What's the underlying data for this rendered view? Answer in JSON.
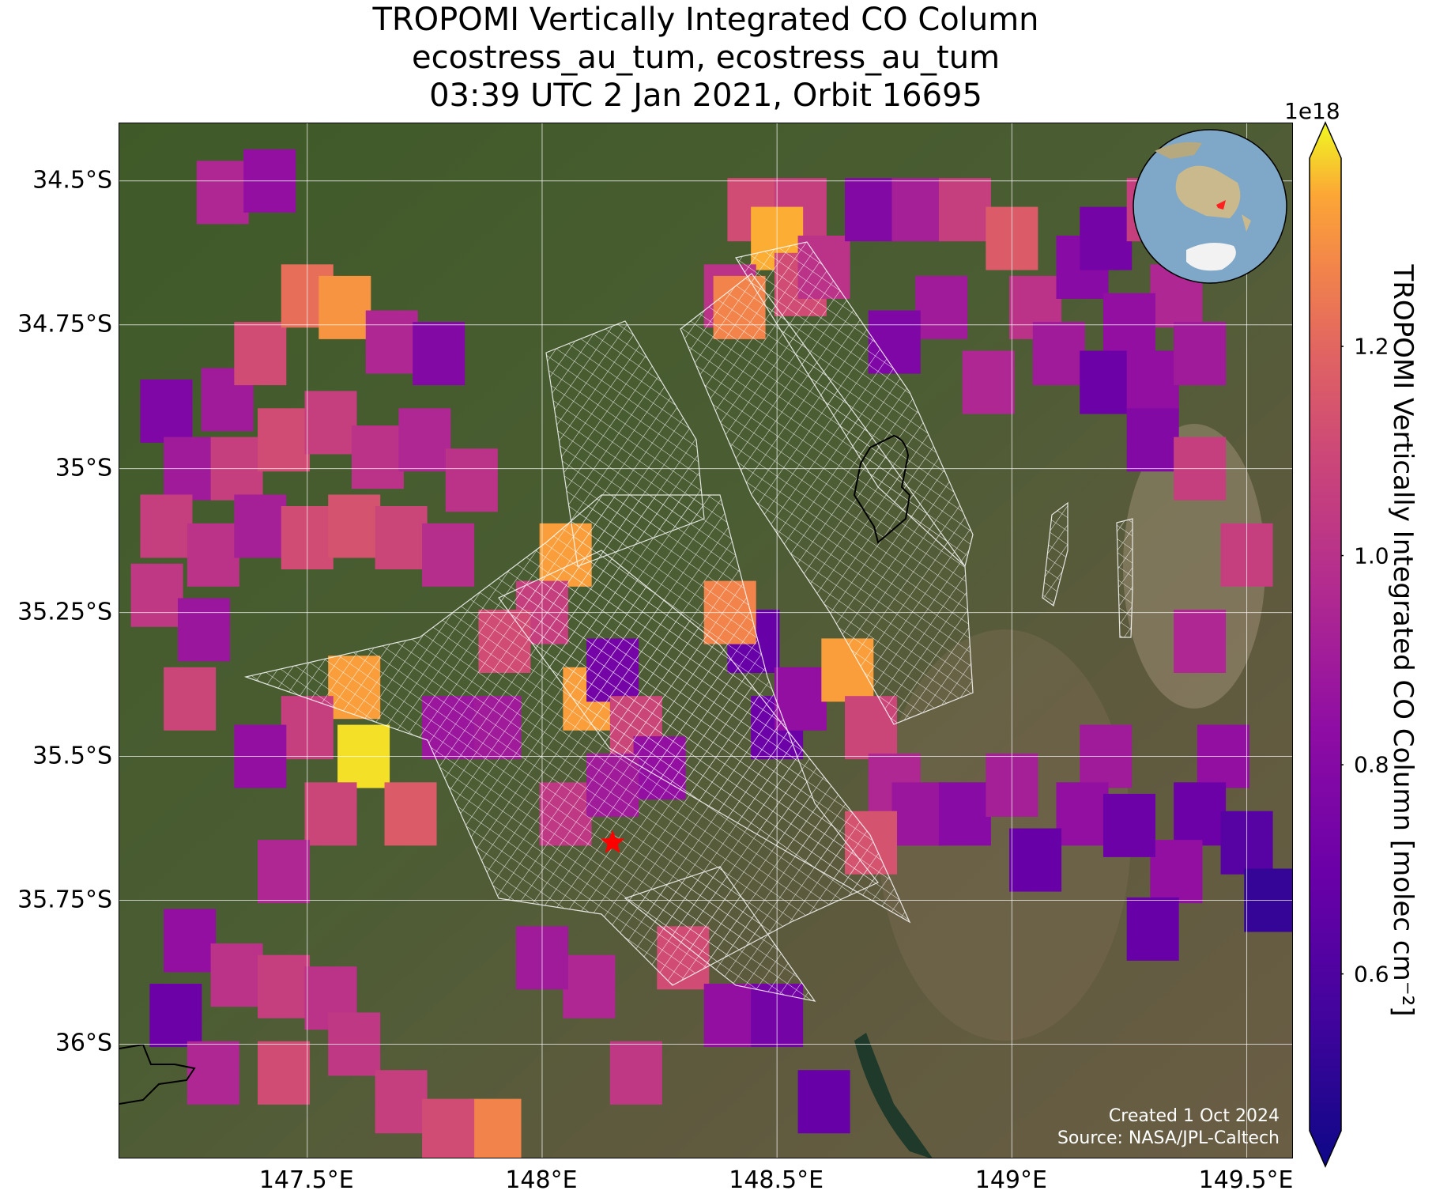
{
  "title": {
    "line1": "TROPOMI Vertically Integrated CO Column",
    "line2": "ecostress_au_tum, ecostress_au_tum",
    "line3": "03:39 UTC 2 Jan 2021, Orbit 16695"
  },
  "map": {
    "lat_ticks": [
      "34.5°S",
      "34.75°S",
      "35°S",
      "35.25°S",
      "35.5°S",
      "35.75°S",
      "36°S"
    ],
    "lon_ticks": [
      "147.5°E",
      "148°E",
      "148.5°E",
      "149°E",
      "149.5°E"
    ],
    "lon_range": [
      147.1,
      149.6
    ],
    "lat_range": [
      -36.2,
      -34.4
    ],
    "target_marker": {
      "lon": 148.15,
      "lat": -35.65,
      "color": "#ff0000",
      "symbol": "star"
    },
    "grid": true
  },
  "chart_data": {
    "type": "heatmap",
    "colormap": "plasma",
    "vmin": 0.45,
    "vmax": 1.38,
    "scale_exponent": "1e18",
    "colorbar_ticks": [
      "0.6",
      "0.8",
      "1.0",
      "1.2"
    ],
    "colorbar_label": "TROPOMI Vertically Integrated CO Column [molec cm⁻²]",
    "cells": [
      [
        147.32,
        -34.52,
        0.95
      ],
      [
        147.42,
        -34.5,
        0.85
      ],
      [
        147.33,
        -34.88,
        0.9
      ],
      [
        147.4,
        -34.8,
        1.1
      ],
      [
        147.5,
        -34.7,
        1.2
      ],
      [
        147.58,
        -34.72,
        1.28
      ],
      [
        147.68,
        -34.78,
        0.95
      ],
      [
        147.78,
        -34.8,
        0.8
      ],
      [
        147.2,
        -34.9,
        0.78
      ],
      [
        147.25,
        -35.0,
        0.9
      ],
      [
        147.35,
        -35.0,
        1.05
      ],
      [
        147.45,
        -34.95,
        1.1
      ],
      [
        147.55,
        -34.92,
        1.05
      ],
      [
        147.65,
        -34.98,
        1.0
      ],
      [
        147.75,
        -34.95,
        0.95
      ],
      [
        147.85,
        -35.02,
        1.0
      ],
      [
        147.2,
        -35.1,
        1.05
      ],
      [
        147.3,
        -35.15,
        1.0
      ],
      [
        147.4,
        -35.1,
        0.92
      ],
      [
        147.5,
        -35.12,
        1.1
      ],
      [
        147.6,
        -35.1,
        1.12
      ],
      [
        147.7,
        -35.12,
        1.08
      ],
      [
        147.8,
        -35.15,
        0.98
      ],
      [
        147.18,
        -35.22,
        1.02
      ],
      [
        147.28,
        -35.28,
        0.88
      ],
      [
        147.25,
        -35.4,
        1.08
      ],
      [
        147.6,
        -35.38,
        1.3
      ],
      [
        147.62,
        -35.5,
        1.36
      ],
      [
        147.5,
        -35.45,
        1.05
      ],
      [
        147.72,
        -35.6,
        1.15
      ],
      [
        147.55,
        -35.6,
        1.08
      ],
      [
        147.4,
        -35.5,
        0.85
      ],
      [
        147.45,
        -35.7,
        0.95
      ],
      [
        147.25,
        -35.82,
        0.85
      ],
      [
        147.35,
        -35.88,
        1.0
      ],
      [
        147.45,
        -35.9,
        1.05
      ],
      [
        147.55,
        -35.92,
        1.0
      ],
      [
        147.22,
        -35.95,
        0.72
      ],
      [
        147.3,
        -36.05,
        0.95
      ],
      [
        147.45,
        -36.05,
        1.1
      ],
      [
        147.6,
        -36.0,
        1.02
      ],
      [
        147.7,
        -36.1,
        1.05
      ],
      [
        147.9,
        -36.15,
        1.25
      ],
      [
        147.8,
        -36.15,
        1.1
      ],
      [
        148.05,
        -35.15,
        1.3
      ],
      [
        148.0,
        -35.25,
        1.05
      ],
      [
        147.92,
        -35.3,
        1.1
      ],
      [
        148.1,
        -35.4,
        1.3
      ],
      [
        148.15,
        -35.35,
        0.75
      ],
      [
        148.2,
        -35.45,
        1.08
      ],
      [
        148.25,
        -35.52,
        0.85
      ],
      [
        147.9,
        -35.45,
        0.9
      ],
      [
        147.8,
        -35.45,
        0.88
      ],
      [
        148.05,
        -35.6,
        1.02
      ],
      [
        148.15,
        -35.55,
        0.9
      ],
      [
        148.45,
        -35.3,
        0.7
      ],
      [
        148.4,
        -35.25,
        1.25
      ],
      [
        148.5,
        -35.45,
        0.72
      ],
      [
        148.55,
        -35.4,
        0.85
      ],
      [
        148.65,
        -35.35,
        1.3
      ],
      [
        148.7,
        -35.45,
        1.08
      ],
      [
        148.75,
        -35.55,
        0.95
      ],
      [
        148.8,
        -35.6,
        0.88
      ],
      [
        148.7,
        -35.65,
        1.12
      ],
      [
        148.9,
        -35.6,
        0.82
      ],
      [
        149.0,
        -35.55,
        0.92
      ],
      [
        148.3,
        -35.85,
        1.1
      ],
      [
        148.4,
        -35.95,
        0.85
      ],
      [
        148.5,
        -35.95,
        0.75
      ],
      [
        148.6,
        -36.1,
        0.7
      ],
      [
        148.2,
        -36.05,
        1.02
      ],
      [
        148.1,
        -35.9,
        0.95
      ],
      [
        148.0,
        -35.85,
        0.9
      ],
      [
        148.45,
        -34.55,
        1.1
      ],
      [
        148.55,
        -34.55,
        1.05
      ],
      [
        148.5,
        -34.6,
        1.32
      ],
      [
        148.55,
        -34.68,
        1.1
      ],
      [
        148.4,
        -34.7,
        1.0
      ],
      [
        148.42,
        -34.72,
        1.25
      ],
      [
        148.6,
        -34.65,
        1.0
      ],
      [
        148.7,
        -34.55,
        0.8
      ],
      [
        148.8,
        -34.55,
        0.92
      ],
      [
        148.9,
        -34.55,
        1.05
      ],
      [
        149.0,
        -34.6,
        1.15
      ],
      [
        149.05,
        -34.72,
        1.0
      ],
      [
        148.85,
        -34.72,
        0.9
      ],
      [
        148.75,
        -34.78,
        0.78
      ],
      [
        148.95,
        -34.85,
        0.95
      ],
      [
        149.1,
        -34.8,
        0.9
      ],
      [
        149.15,
        -34.65,
        0.82
      ],
      [
        149.2,
        -34.6,
        0.75
      ],
      [
        149.3,
        -34.55,
        1.05
      ],
      [
        149.35,
        -34.7,
        0.95
      ],
      [
        149.25,
        -34.75,
        0.85
      ],
      [
        149.2,
        -34.85,
        0.72
      ],
      [
        149.3,
        -34.85,
        0.85
      ],
      [
        149.4,
        -34.8,
        0.9
      ],
      [
        149.3,
        -34.95,
        0.8
      ],
      [
        149.4,
        -35.0,
        1.05
      ],
      [
        149.5,
        -35.15,
        1.05
      ],
      [
        149.4,
        -35.3,
        0.95
      ],
      [
        149.45,
        -35.5,
        0.85
      ],
      [
        149.4,
        -35.6,
        0.72
      ],
      [
        149.5,
        -35.65,
        0.65
      ],
      [
        149.35,
        -35.7,
        0.85
      ],
      [
        149.3,
        -35.8,
        0.7
      ],
      [
        149.55,
        -35.75,
        0.55
      ],
      [
        149.2,
        -35.5,
        0.9
      ],
      [
        149.15,
        -35.6,
        0.85
      ],
      [
        149.05,
        -35.68,
        0.7
      ],
      [
        149.25,
        -35.62,
        0.72
      ]
    ]
  },
  "credit": {
    "created": "Created 1 Oct 2024",
    "source": "Source: NASA/JPL-Caltech"
  }
}
